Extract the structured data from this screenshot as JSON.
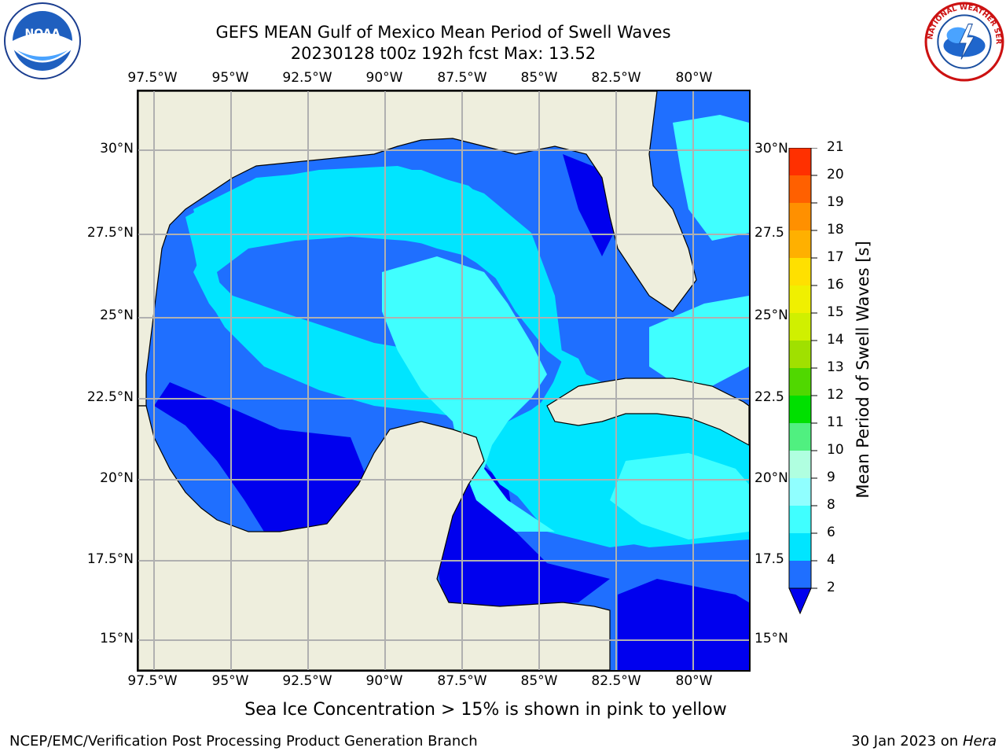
{
  "title": {
    "line1": "GEFS MEAN Gulf of Mexico Mean Period of Swell Waves",
    "line2": "20230128 t00z 192h fcst   Max: 13.52"
  },
  "logos": {
    "left": {
      "icon": "noaa-logo-icon",
      "text": "NOAA"
    },
    "right": {
      "icon": "nws-logo-icon",
      "text": "NATIONAL WEATHER SERVICE"
    }
  },
  "axes": {
    "lon_labels": [
      "97.5°W",
      "95°W",
      "92.5°W",
      "90°W",
      "87.5°W",
      "85°W",
      "82.5°W",
      "80°W"
    ],
    "lat_labels": [
      "30°N",
      "27.5°N",
      "25°N",
      "22.5°N",
      "20°N",
      "17.5°N",
      "15°N"
    ],
    "lat_labels_right": [
      "30°N",
      "27.5",
      "25°N",
      "22.5",
      "20°N",
      "17.5",
      "15°N"
    ]
  },
  "colorbar": {
    "label": "Mean Period of Swell Waves [s]",
    "ticks": [
      "2",
      "4",
      "6",
      "8",
      "9",
      "10",
      "11",
      "12",
      "13",
      "14",
      "15",
      "16",
      "17",
      "18",
      "19",
      "20",
      "21"
    ],
    "colors": [
      "#1f6fff",
      "#00e5ff",
      "#40ffff",
      "#90ffff",
      "#b0ffe0",
      "#50f080",
      "#00e000",
      "#50d800",
      "#a0e000",
      "#d0f000",
      "#f0f000",
      "#ffe000",
      "#ffb000",
      "#ff9000",
      "#ff6000",
      "#ff3000",
      "#ff0000"
    ],
    "under_color": "#0000ee"
  },
  "colors": {
    "land": "#eeeedd",
    "grid": "#b0b0b0",
    "coast": "#000000"
  },
  "footer": {
    "note": "Sea Ice Concentration > 15% is shown in pink to yellow",
    "left": "NCEP/EMC/Verification Post Processing Product Generation Branch",
    "right_prefix": "30 Jan 2023 on ",
    "right_machine": "Hera"
  }
}
